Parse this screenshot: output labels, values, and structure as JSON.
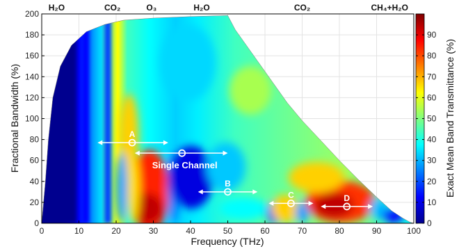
{
  "chart_data": {
    "type": "heatmap",
    "title": "",
    "xlabel": "Frequency (THz)",
    "ylabel": "Fractional Bandwidth (%)",
    "colorbar_label": "Exact Mean Band Transmittance (%)",
    "xlim": [
      0,
      100
    ],
    "ylim": [
      0,
      200
    ],
    "clim": [
      0,
      100
    ],
    "colormap": "jet",
    "x_ticks": [
      0,
      10,
      20,
      30,
      40,
      50,
      60,
      70,
      80,
      90,
      100
    ],
    "y_ticks": [
      0,
      20,
      40,
      60,
      80,
      100,
      120,
      140,
      160,
      180,
      200
    ],
    "colorbar_ticks": [
      0,
      10,
      20,
      30,
      40,
      50,
      60,
      70,
      80,
      90
    ],
    "absorption_bands": [
      {
        "label": "H₂O",
        "x": 4
      },
      {
        "label": "CO₂",
        "x": 19
      },
      {
        "label": "O₃",
        "x": 29.5
      },
      {
        "label": "H₂O",
        "x": 43
      },
      {
        "label": "CO₂",
        "x": 70
      },
      {
        "label": "CH₄+H₂O",
        "x": 93.5
      }
    ],
    "points": [
      {
        "label": "A",
        "x": 24.3,
        "y": 77,
        "x_range": [
          15,
          34
        ]
      },
      {
        "label": "B",
        "x": 50,
        "y": 30,
        "x_range": [
          42,
          58
        ]
      },
      {
        "label": "C",
        "x": 67,
        "y": 19,
        "x_range": [
          61,
          73
        ]
      },
      {
        "label": "D",
        "x": 82,
        "y": 16,
        "x_range": [
          75,
          89
        ]
      }
    ],
    "single_channel": {
      "label": "Single Channel",
      "x": 37.7,
      "y": 67,
      "x_range": [
        25,
        50
      ]
    }
  },
  "colors": {
    "colormap_stops": [
      "#00008f",
      "#0000ff",
      "#00ffff",
      "#ffff00",
      "#ff0000",
      "#800000"
    ],
    "marker_color": "#ffffff"
  }
}
